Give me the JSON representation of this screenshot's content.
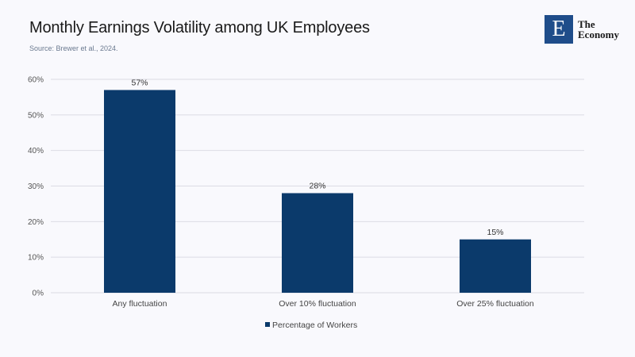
{
  "header": {
    "title": "Monthly Earnings Volatility among UK Employees",
    "source": "Source: Brewer et al., 2024."
  },
  "logo": {
    "letter": "E",
    "line1": "The",
    "line2": "Economy"
  },
  "colors": {
    "bar": "#0b3a6b",
    "grid": "#dcdce4"
  },
  "chart_data": {
    "type": "bar",
    "title": "Monthly Earnings Volatility among UK Employees",
    "categories": [
      "Any fluctuation",
      "Over 10% fluctuation",
      "Over 25% fluctuation"
    ],
    "series": [
      {
        "name": "Percentage of Workers",
        "values": [
          57,
          28,
          15
        ]
      }
    ],
    "data_labels": [
      "57%",
      "28%",
      "15%"
    ],
    "yticks": [
      "0%",
      "10%",
      "20%",
      "30%",
      "40%",
      "50%",
      "60%"
    ],
    "ylim": [
      0,
      60
    ],
    "grid": true,
    "legend": "bottom-center",
    "xlabel": "",
    "ylabel": ""
  }
}
